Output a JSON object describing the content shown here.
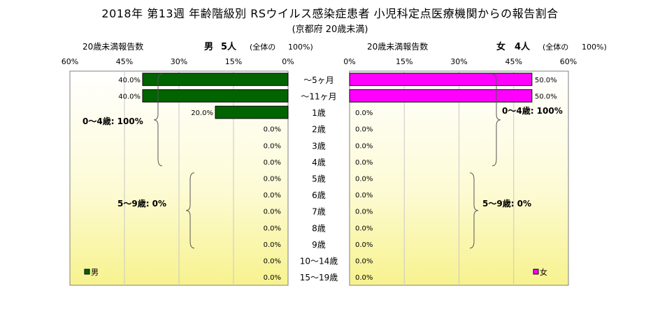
{
  "title": "2018年 第13週 年齢階級別 RSウイルス感染症患者 小児科定点医療機関からの報告割合",
  "subtitle": "(京都府 20歳未満)",
  "chart_data": {
    "type": "bar",
    "categories": [
      "～5ヶ月",
      "～11ヶ月",
      "1歳",
      "2歳",
      "3歳",
      "4歳",
      "5歳",
      "6歳",
      "7歳",
      "8歳",
      "9歳",
      "10～14歳",
      "15～19歳"
    ],
    "axis_ticks": [
      "60%",
      "45%",
      "30%",
      "15%",
      "0%"
    ],
    "axis_ticks_right": [
      "0%",
      "15%",
      "30%",
      "45%",
      "60%"
    ],
    "xlim": [
      0,
      60
    ],
    "grid": true,
    "series": [
      {
        "name": "男",
        "header_count_label": "20歳未満報告数",
        "header_sex": "男",
        "header_total": "5人",
        "header_scope": "(全体の",
        "header_pct": "100%)",
        "color": "#006400",
        "values": [
          40.0,
          40.0,
          20.0,
          0,
          0,
          0,
          0,
          0,
          0,
          0,
          0,
          0,
          0
        ],
        "value_labels": [
          "40.0%",
          "40.0%",
          "20.0%",
          "0.0%",
          "0.0%",
          "0.0%",
          "0.0%",
          "0.0%",
          "0.0%",
          "0.0%",
          "0.0%",
          "0.0%",
          "0.0%"
        ],
        "group_labels": [
          "0～4歳: 100%",
          "5～9歳: 0%"
        ],
        "legend": "男"
      },
      {
        "name": "女",
        "header_count_label": "20歳未満報告数",
        "header_sex": "女",
        "header_total": "4人",
        "header_scope": "(全体の",
        "header_pct": "100%)",
        "color": "#ff00ff",
        "values": [
          50.0,
          50.0,
          0,
          0,
          0,
          0,
          0,
          0,
          0,
          0,
          0,
          0,
          0
        ],
        "value_labels": [
          "50.0%",
          "50.0%",
          "0.0%",
          "0.0%",
          "0.0%",
          "0.0%",
          "0.0%",
          "0.0%",
          "0.0%",
          "0.0%",
          "0.0%",
          "0.0%",
          "0.0%"
        ],
        "group_labels": [
          "0～4歳: 100%",
          "5～9歳: 0%"
        ],
        "legend": "女"
      }
    ]
  }
}
